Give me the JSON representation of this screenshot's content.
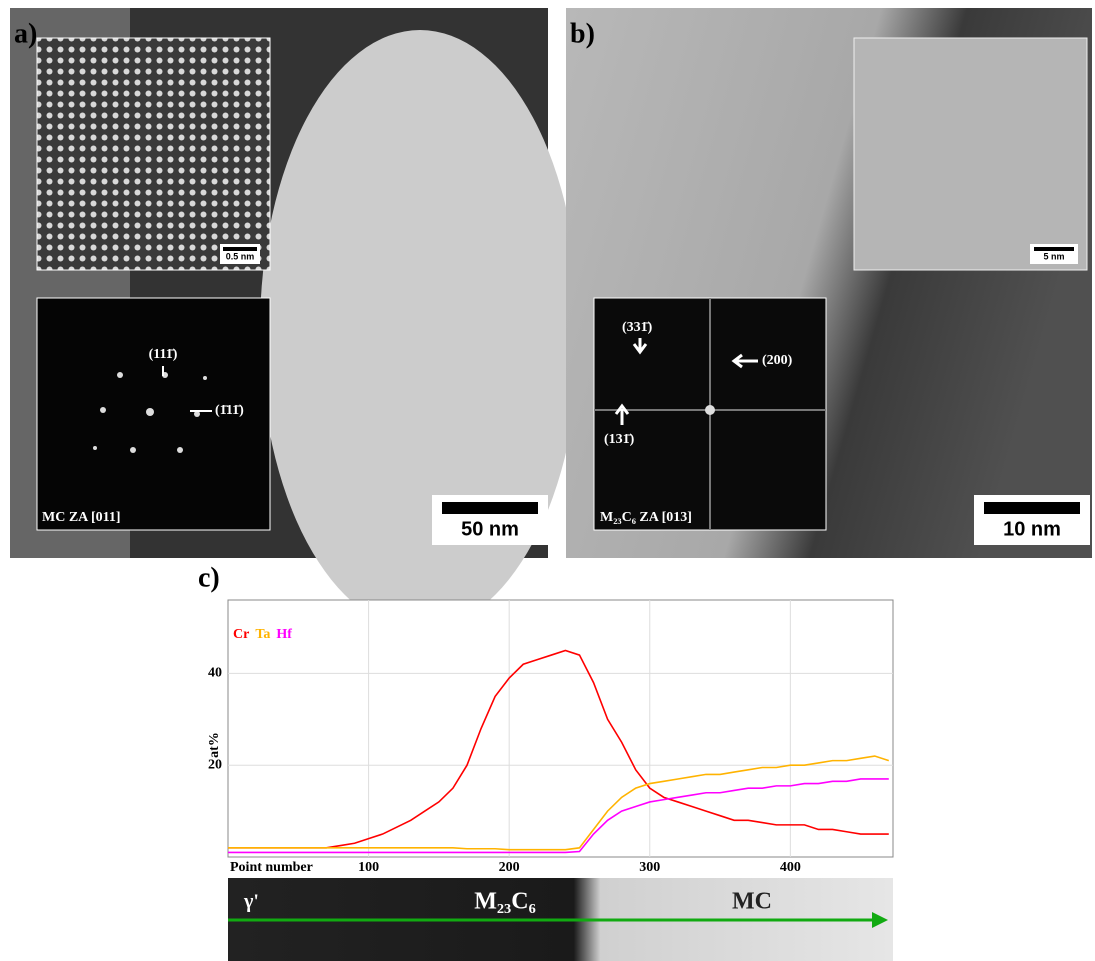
{
  "panels": {
    "a": {
      "label": "a)",
      "inset_scale": "0.5 nm",
      "spot_1": "(111̄)",
      "spot_2": "(1̄11̄)",
      "zone_axis": "MC ZA [011]",
      "scale_bar": "50 nm"
    },
    "b": {
      "label": "b)",
      "inset_scale": "5 nm",
      "spot_1": "(331̄)",
      "spot_2": "(200)",
      "spot_3": "(131̄)",
      "zone_axis": "M₂₃C₆ ZA [013]",
      "scale_bar": "10 nm"
    },
    "c": {
      "label": "c)",
      "strip_labels": [
        "γ'",
        "M₂₃C₆",
        "MC"
      ]
    }
  },
  "chart_data": {
    "type": "line",
    "xlabel": "Point number",
    "ylabel": "at%",
    "x": [
      0,
      10,
      20,
      30,
      40,
      50,
      60,
      70,
      80,
      90,
      100,
      110,
      120,
      130,
      140,
      150,
      160,
      170,
      180,
      190,
      200,
      210,
      220,
      230,
      240,
      250,
      260,
      270,
      280,
      290,
      300,
      310,
      320,
      330,
      340,
      350,
      360,
      370,
      380,
      390,
      400,
      410,
      420,
      430,
      440,
      450,
      460,
      470
    ],
    "series": [
      {
        "name": "Cr",
        "color": "#ff0000",
        "values": [
          2,
          2,
          2,
          2,
          2,
          2,
          2,
          2,
          2.5,
          3,
          4,
          5,
          6.5,
          8,
          10,
          12,
          15,
          20,
          28,
          35,
          39,
          42,
          43,
          44,
          45,
          44,
          38,
          30,
          25,
          19,
          15,
          13,
          12,
          11,
          10,
          9,
          8,
          8,
          7.5,
          7,
          7,
          7,
          6,
          6,
          5.5,
          5,
          5,
          5
        ]
      },
      {
        "name": "Ta",
        "color": "#ffb300",
        "values": [
          2,
          2,
          2,
          2,
          2,
          2,
          2,
          2,
          2,
          2,
          2,
          2,
          2,
          2,
          2,
          2,
          2,
          1.8,
          1.8,
          1.8,
          1.6,
          1.6,
          1.6,
          1.6,
          1.6,
          2,
          6,
          10,
          13,
          15,
          16,
          16.5,
          17,
          17.5,
          18,
          18,
          18.5,
          19,
          19.5,
          19.5,
          20,
          20,
          20.5,
          21,
          21,
          21.5,
          22,
          21
        ]
      },
      {
        "name": "Hf",
        "color": "#ff00ff",
        "values": [
          1,
          1,
          1,
          1,
          1,
          1,
          1,
          1,
          1,
          1,
          1,
          1,
          1,
          1,
          1,
          1,
          1,
          1,
          1,
          1,
          1,
          1,
          1,
          1,
          1,
          1.2,
          5,
          8,
          10,
          11,
          12,
          12.5,
          13,
          13.5,
          14,
          14,
          14.5,
          15,
          15,
          15.5,
          15.5,
          16,
          16,
          16.5,
          16.5,
          17,
          17,
          17
        ]
      }
    ],
    "xlim": [
      0,
      473
    ],
    "ylim": [
      0,
      56
    ],
    "xticks": [
      100,
      200,
      300,
      400
    ],
    "yticks": [
      20,
      40
    ],
    "grid": true
  }
}
